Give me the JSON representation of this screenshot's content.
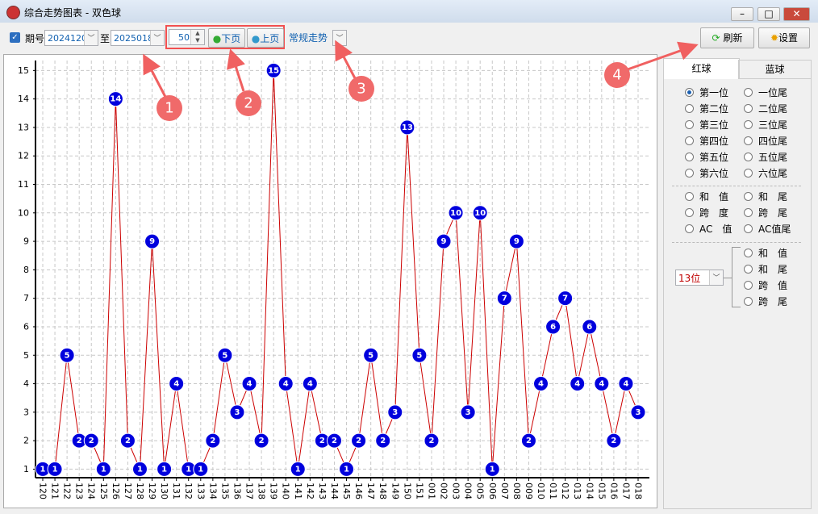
{
  "window": {
    "title": "综合走势图表 - 双色球"
  },
  "toolbar": {
    "period_label": "期号",
    "from": "2024120",
    "to_label": "至",
    "to": "2025018",
    "count": "50",
    "next": "下页",
    "prev": "上页",
    "mode": "常规走势",
    "refresh": "刷新",
    "settings": "设置"
  },
  "annotations": [
    "1",
    "2",
    "3",
    "4"
  ],
  "tabs": [
    "红球",
    "蓝球"
  ],
  "positions": [
    "第一位",
    "第二位",
    "第三位",
    "第四位",
    "第五位",
    "第六位"
  ],
  "tails": [
    "一位尾",
    "二位尾",
    "三位尾",
    "四位尾",
    "五位尾",
    "六位尾"
  ],
  "stats_left": [
    "和　值",
    "跨　度",
    "AC　值"
  ],
  "stats_right": [
    "和　尾",
    "跨　尾",
    "AC值尾"
  ],
  "digit_select": "13位",
  "digit_options": [
    "和　值",
    "和　尾",
    "跨　值",
    "跨　尾"
  ],
  "chart_data": {
    "type": "line",
    "categories": [
      "120",
      "121",
      "122",
      "123",
      "124",
      "125",
      "126",
      "127",
      "128",
      "129",
      "130",
      "131",
      "132",
      "133",
      "134",
      "135",
      "136",
      "137",
      "138",
      "139",
      "140",
      "141",
      "142",
      "143",
      "144",
      "145",
      "146",
      "147",
      "148",
      "149",
      "150",
      "151",
      "001",
      "002",
      "003",
      "004",
      "005",
      "006",
      "007",
      "008",
      "009",
      "010",
      "011",
      "012",
      "013",
      "014",
      "015",
      "016",
      "017",
      "018"
    ],
    "values": [
      1,
      1,
      5,
      2,
      2,
      1,
      14,
      2,
      1,
      9,
      1,
      4,
      1,
      1,
      2,
      5,
      3,
      4,
      2,
      15,
      4,
      1,
      4,
      2,
      2,
      1,
      2,
      5,
      2,
      3,
      13,
      5,
      2,
      9,
      10,
      3,
      10,
      1,
      7,
      9,
      2,
      4,
      6,
      7,
      4,
      6,
      4,
      2,
      4,
      3
    ],
    "ylim": [
      0.7,
      15.35
    ],
    "yticks": [
      1,
      2,
      3,
      4,
      5,
      6,
      7,
      8,
      9,
      10,
      11,
      12,
      13,
      14,
      15
    ],
    "grid": true,
    "line_color": "#cc0000",
    "marker_color": "#0000dd"
  }
}
